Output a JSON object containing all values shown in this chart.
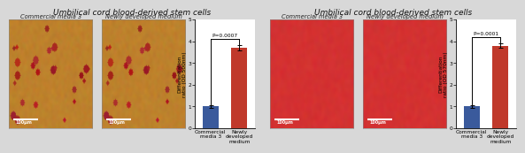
{
  "title": "Umbilical cord blood-derived stem cells",
  "panel1": {
    "img1_label": "Commercial media 3",
    "img2_label": "Newly developed medium",
    "bar_values": [
      1.0,
      3.7
    ],
    "bar_colors": [
      "#3a5a9c",
      "#c0392b"
    ],
    "bar_labels": [
      "Commercial\nmedia 3",
      "Newly\ndeveloped\nmedium"
    ],
    "ylabel": "Differentiation\nratio (OD 500nm)",
    "ylim": [
      0,
      5
    ],
    "yticks": [
      0,
      1,
      2,
      3,
      4,
      5
    ],
    "pvalue": "P=0.0007",
    "error_bar": [
      0.06,
      0.13
    ],
    "scale_bar": "100μm",
    "img_type": "brown"
  },
  "panel2": {
    "img1_label": "Commercial media 3",
    "img2_label": "Newly developed medium",
    "bar_values": [
      1.0,
      3.8
    ],
    "bar_colors": [
      "#3a5a9c",
      "#c0392b"
    ],
    "bar_labels": [
      "Commercial\nmedia 3",
      "Newly\ndeveloped\nmedium"
    ],
    "ylabel": "Differentiation\nratio (OD 570nm)",
    "ylim": [
      0,
      5
    ],
    "yticks": [
      0,
      1,
      2,
      3,
      4,
      5
    ],
    "pvalue": "P=0.0001",
    "error_bar": [
      0.06,
      0.11
    ],
    "scale_bar": "100μm",
    "img_type": "red"
  },
  "background": "#d8d8d8",
  "title_fontsize": 6.5,
  "label_fontsize": 4.8,
  "axis_fontsize": 4.2
}
